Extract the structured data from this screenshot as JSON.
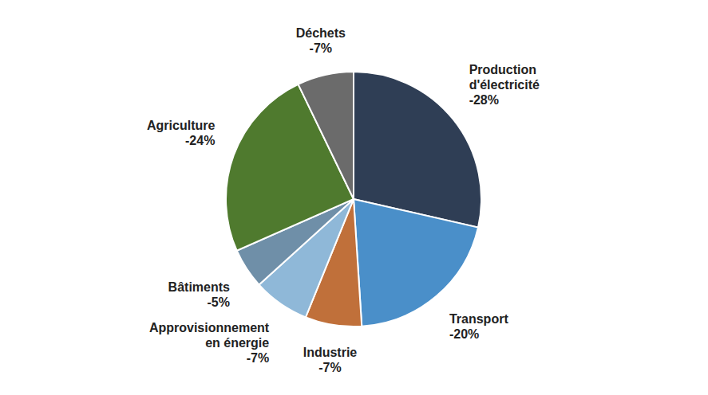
{
  "chart_data": {
    "type": "pie",
    "categories": [
      "Production d'électricité",
      "Transport",
      "Industrie",
      "Approvisionnement en énergie",
      "Bâtiments",
      "Agriculture",
      "Déchets"
    ],
    "values": [
      -28,
      -20,
      -7,
      -7,
      -5,
      -24,
      -7
    ],
    "value_labels": [
      "-28%",
      "-20%",
      "-7%",
      "-7%",
      "-5%",
      "-24%",
      "-7%"
    ],
    "colors": [
      "#2f3e55",
      "#4a8fc9",
      "#c0703a",
      "#8fb8d8",
      "#6f8fa8",
      "#4f7a2e",
      "#6b6b6b"
    ],
    "data_labels": true
  }
}
